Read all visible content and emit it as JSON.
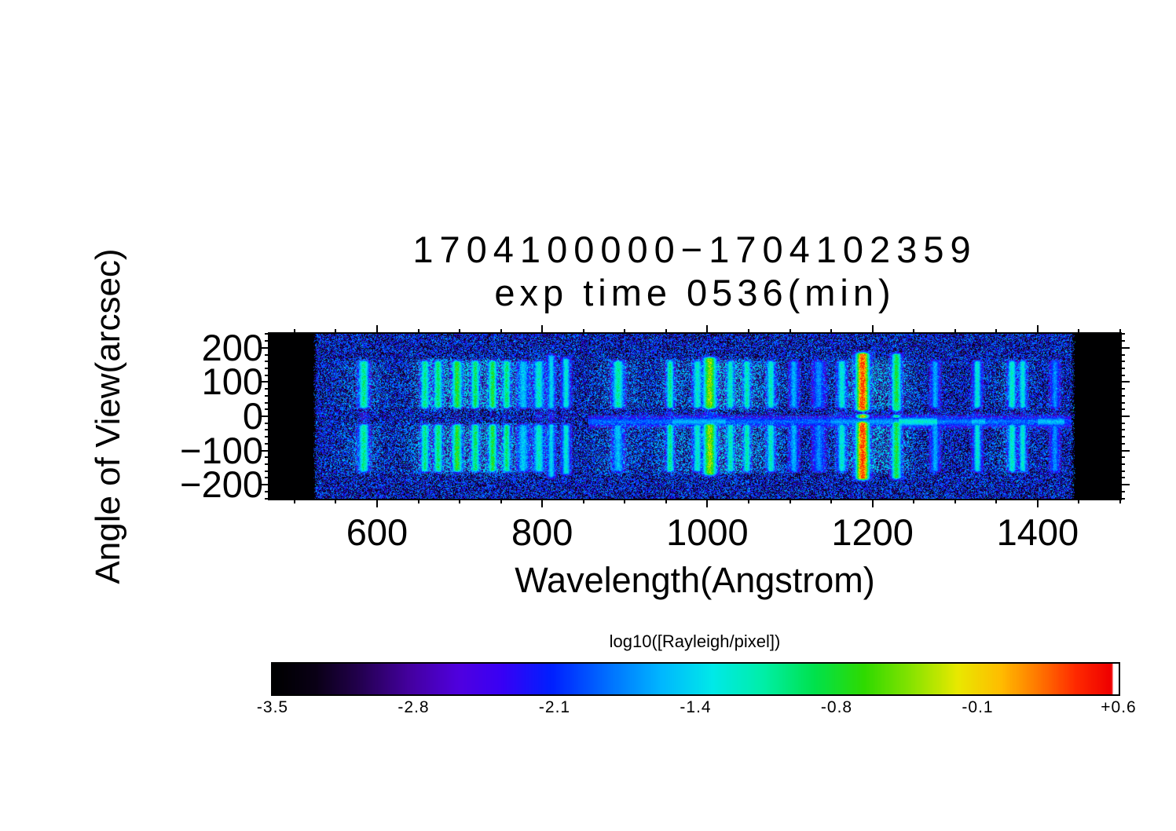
{
  "figure": {
    "title_line1": "1704100000−1704102359",
    "title_line2": "exp time 0536(min)"
  },
  "axes": {
    "x": {
      "label": "Wavelength(Angstrom)",
      "tick_labels": [
        "600",
        "800",
        "1000",
        "1200",
        "1400"
      ],
      "tick_values": [
        600,
        800,
        1000,
        1200,
        1400
      ],
      "minor_step": 50,
      "range": [
        469.7,
        1500.0
      ]
    },
    "y": {
      "label": "Angle of View(arcsec)",
      "tick_labels": [
        "200",
        "100",
        "0",
        "−100",
        "−200"
      ],
      "tick_values": [
        200,
        100,
        0,
        -100,
        -200
      ],
      "minor_step": 20,
      "range": [
        -241,
        241
      ]
    }
  },
  "colorbar": {
    "label": "log10([Rayleigh/pixel])",
    "tick_labels": [
      "-3.5",
      "-2.8",
      "-2.1",
      "-1.4",
      "-0.8",
      "-0.1",
      "+0.6"
    ],
    "value_range": [
      -3.5,
      0.6
    ],
    "gradient_stops": [
      [
        0.0,
        "#000000"
      ],
      [
        0.05,
        "#0a0016"
      ],
      [
        0.1,
        "#22004c"
      ],
      [
        0.16,
        "#44009e"
      ],
      [
        0.22,
        "#5000e0"
      ],
      [
        0.27,
        "#3a00f5"
      ],
      [
        0.33,
        "#0020ff"
      ],
      [
        0.4,
        "#0074ff"
      ],
      [
        0.46,
        "#00b8ff"
      ],
      [
        0.52,
        "#00e9e9"
      ],
      [
        0.58,
        "#00efa8"
      ],
      [
        0.64,
        "#00e24e"
      ],
      [
        0.7,
        "#30da00"
      ],
      [
        0.76,
        "#90e400"
      ],
      [
        0.81,
        "#e9e900"
      ],
      [
        0.86,
        "#ffbe00"
      ],
      [
        0.905,
        "#ff7800"
      ],
      [
        0.95,
        "#ff2a00"
      ],
      [
        0.992,
        "#ef0000"
      ],
      [
        0.994,
        "#ffffff"
      ],
      [
        1.0,
        "#ffffff"
      ]
    ]
  },
  "chart_data": {
    "type": "heatmap",
    "title": "1704100000−1704102359 exp time 0536(min)",
    "xlabel": "Wavelength(Angstrom)",
    "ylabel": "Angle of View(arcsec)",
    "xlim": [
      469.7,
      1500.0
    ],
    "ylim": [
      -241,
      241
    ],
    "value_label": "log10([Rayleigh/pixel])",
    "value_lim": [
      -3.5,
      0.6
    ],
    "data_extent_angstrom": [
      525,
      1443
    ],
    "background_noise": {
      "description": "speckled detector noise, black and dark-blue pixels",
      "dark_fraction": 0.45,
      "log10_levels": [
        -3.45,
        -1.7
      ]
    },
    "torus_lobes_arcsec": {
      "upper": [
        14,
        172
      ],
      "lower": [
        -172,
        -14
      ]
    },
    "emission_bands": [
      {
        "wl": 584,
        "peak": -1.04,
        "w": 8,
        "waist": 0.3
      },
      {
        "wl": 658,
        "peak": -1.04,
        "w": 6.5,
        "waist": 0.14
      },
      {
        "wl": 674,
        "peak": -0.96,
        "w": 6.5,
        "waist": 0.14
      },
      {
        "wl": 697,
        "peak": -0.71,
        "w": 7.5,
        "waist": 0.18
      },
      {
        "wl": 719,
        "peak": -0.92,
        "w": 6.5,
        "waist": 0.14
      },
      {
        "wl": 740,
        "peak": -0.79,
        "w": 6.5,
        "waist": 0.16
      },
      {
        "wl": 757,
        "peak": -0.96,
        "w": 6,
        "waist": 0.14
      },
      {
        "wl": 777,
        "peak": -1.53,
        "w": 9,
        "waist": 0.12
      },
      {
        "wl": 796,
        "peak": -1.2,
        "w": 8,
        "waist": 0.3
      },
      {
        "wl": 811,
        "peak": -1.45,
        "w": 6,
        "waist": 0.45,
        "ext": [
          12,
          190
        ]
      },
      {
        "wl": 829,
        "peak": -1.29,
        "w": 6.5,
        "waist": 0.22,
        "ext": [
          14,
          180
        ]
      },
      {
        "wl": 892,
        "peak": -1.12,
        "w": 9,
        "waist": 0.12,
        "ls": 0.8
      },
      {
        "wl": 955,
        "peak": -1.04,
        "w": 6,
        "waist": 0.42
      },
      {
        "wl": 988,
        "peak": -1.25,
        "w": 7,
        "waist": 0.3
      },
      {
        "wl": 1003,
        "peak": -0.38,
        "w": 10,
        "waist": 0.45,
        "ext": [
          12,
          182
        ]
      },
      {
        "wl": 1028,
        "peak": -1.2,
        "w": 6,
        "waist": 0.2
      },
      {
        "wl": 1048,
        "peak": -1.16,
        "w": 6,
        "waist": 0.25
      },
      {
        "wl": 1077,
        "peak": -1.2,
        "w": 6.5,
        "waist": 0.3
      },
      {
        "wl": 1105,
        "peak": -1.61,
        "w": 7,
        "waist": 0.2
      },
      {
        "wl": 1135,
        "peak": -1.78,
        "w": 9,
        "waist": 0.2
      },
      {
        "wl": 1163,
        "peak": -1.25,
        "w": 7,
        "waist": 0.35
      },
      {
        "wl": 1188,
        "peak": 0.44,
        "w": 9.5,
        "waist": 0.86,
        "ext": [
          6,
          195
        ]
      },
      {
        "wl": 1229,
        "peak": -0.79,
        "w": 7.5,
        "waist": 0.92,
        "ext": [
          5,
          193
        ]
      },
      {
        "wl": 1276,
        "peak": -1.66,
        "w": 7,
        "waist": 0.3
      },
      {
        "wl": 1327,
        "peak": -1.29,
        "w": 6.5,
        "waist": 0.35
      },
      {
        "wl": 1369,
        "peak": -1.2,
        "w": 6.5,
        "waist": 0.3
      },
      {
        "wl": 1382,
        "peak": -1.29,
        "w": 6,
        "waist": 0.3
      },
      {
        "wl": 1421,
        "peak": -1.78,
        "w": 7,
        "waist": 0.35
      }
    ],
    "equatorial_line": {
      "center_arcsec": -16,
      "sigma_arcsec": 13,
      "segments": [
        {
          "range": [
            856,
            958
          ],
          "level": -1.95
        },
        {
          "range": [
            958,
            1022
          ],
          "level": -1.62
        },
        {
          "range": [
            1022,
            1150
          ],
          "level": -1.95
        },
        {
          "range": [
            1150,
            1232
          ],
          "level": -1.72
        },
        {
          "range": [
            1232,
            1278
          ],
          "level": -1.25
        },
        {
          "range": [
            1278,
            1320
          ],
          "level": -1.85
        },
        {
          "range": [
            1320,
            1336
          ],
          "level": -1.55
        },
        {
          "range": [
            1336,
            1400
          ],
          "level": -1.9
        },
        {
          "range": [
            1400,
            1432
          ],
          "level": -1.55
        },
        {
          "range": [
            1432,
            1441
          ],
          "level": -2.1
        }
      ]
    }
  }
}
